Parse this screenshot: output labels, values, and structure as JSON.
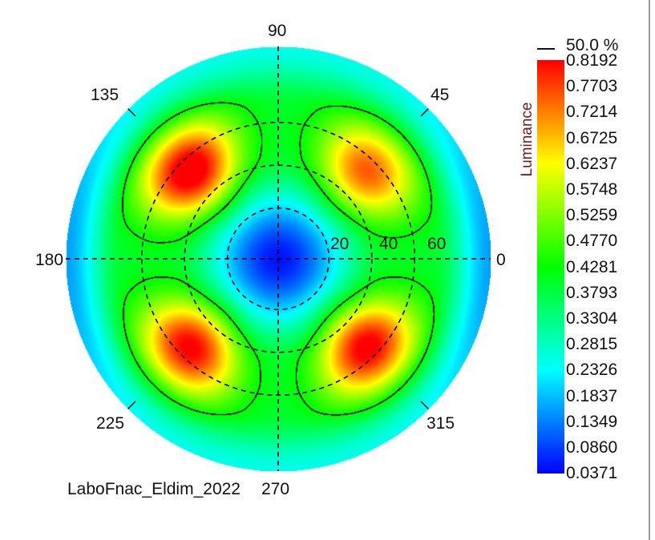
{
  "chart_data": {
    "type": "heatmap",
    "subtype": "polar-conoscopic",
    "colorbar_title": "Luminance",
    "contour_label": "50.0 %",
    "contour_level": 0.4281,
    "value_range": [
      0.0371,
      0.8192
    ],
    "colorbar_ticks": [
      "0.8192",
      "0.7703",
      "0.7214",
      "0.6725",
      "0.6237",
      "0.5748",
      "0.5259",
      "0.4770",
      "0.4281",
      "0.3793",
      "0.3304",
      "0.2815",
      "0.2326",
      "0.1837",
      "0.1349",
      "0.0860",
      "0.0371"
    ],
    "angle_labels": {
      "a0": "0",
      "a45": "45",
      "a90": "90",
      "a135": "135",
      "a180": "180",
      "a225": "225",
      "a270": "270",
      "a315": "315"
    },
    "radial_labels": [
      "20",
      "40",
      "60"
    ],
    "radial_rings_deg": [
      20,
      40,
      60
    ],
    "max_radius_deg": 88,
    "lobes": [
      {
        "azimuth": 45,
        "polar": 52,
        "value": 0.7
      },
      {
        "azimuth": 135,
        "polar": 52,
        "value": 0.8192
      },
      {
        "azimuth": 225,
        "polar": 52,
        "value": 0.78
      },
      {
        "azimuth": 315,
        "polar": 52,
        "value": 0.79
      }
    ],
    "center_value": 0.05,
    "colormap": [
      "#0000ff",
      "#00ffff",
      "#00ff00",
      "#ffff00",
      "#ff0000"
    ]
  },
  "footer_label": "LaboFnac_Eldim_2022"
}
